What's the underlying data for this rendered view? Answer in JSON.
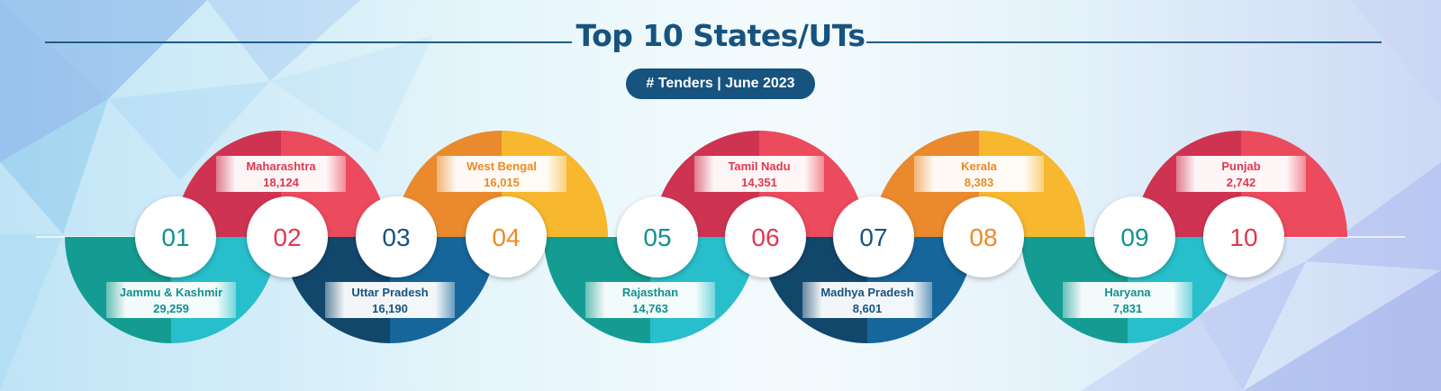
{
  "title": "Top 10 States/UTs",
  "subtitle": "# Tenders | June 2023",
  "colors": {
    "red": "#e8465c",
    "orange": "#f3a52a",
    "teal": "#1fb5bd",
    "navy": "#14598a",
    "title": "#17537f"
  },
  "chart_data": {
    "type": "bar",
    "title": "Top 10 States/UTs",
    "subtitle": "# Tenders | June 2023",
    "categories": [
      "Jammu & Kashmir",
      "Maharashtra",
      "Uttar Pradesh",
      "West Bengal",
      "Rajasthan",
      "Tamil Nadu",
      "Madhya Pradesh",
      "Kerala",
      "Haryana",
      "Punjab"
    ],
    "values": [
      29259,
      18124,
      16190,
      16015,
      14763,
      14351,
      8601,
      8383,
      7831,
      2742
    ],
    "items": [
      {
        "rank": "01",
        "name": "Jammu & Kashmir",
        "value": "29,259",
        "pos": "bottom",
        "color": "teal"
      },
      {
        "rank": "02",
        "name": "Maharashtra",
        "value": "18,124",
        "pos": "top",
        "color": "red"
      },
      {
        "rank": "03",
        "name": "Uttar Pradesh",
        "value": "16,190",
        "pos": "bottom",
        "color": "navy"
      },
      {
        "rank": "04",
        "name": "West Bengal",
        "value": "16,015",
        "pos": "top",
        "color": "orange"
      },
      {
        "rank": "05",
        "name": "Rajasthan",
        "value": "14,763",
        "pos": "bottom",
        "color": "teal"
      },
      {
        "rank": "06",
        "name": "Tamil Nadu",
        "value": "14,351",
        "pos": "top",
        "color": "red"
      },
      {
        "rank": "07",
        "name": "Madhya Pradesh",
        "value": "8,601",
        "pos": "bottom",
        "color": "navy"
      },
      {
        "rank": "08",
        "name": "Kerala",
        "value": "8,383",
        "pos": "top",
        "color": "orange"
      },
      {
        "rank": "09",
        "name": "Haryana",
        "value": "7,831",
        "pos": "bottom",
        "color": "teal"
      },
      {
        "rank": "10",
        "name": "Punjab",
        "value": "2,742",
        "pos": "top",
        "color": "red"
      }
    ]
  }
}
